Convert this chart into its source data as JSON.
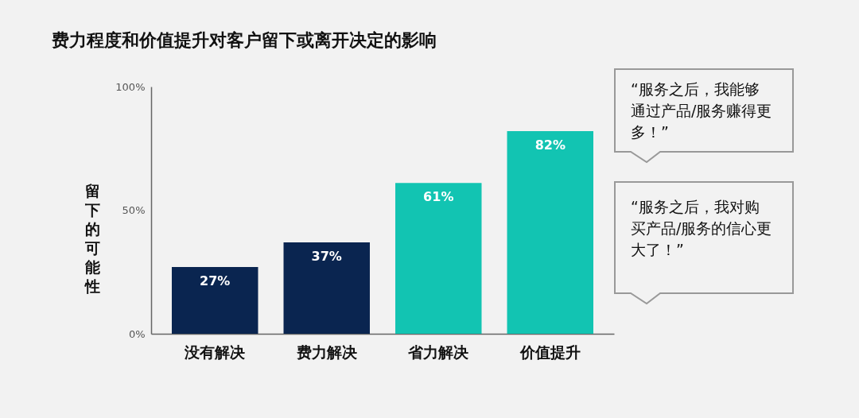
{
  "chart_data": {
    "type": "bar",
    "title": "费力程度和价值提升对客户留下或离开决定的影响",
    "ylabel": "留下的可能性",
    "categories": [
      "没有解决",
      "费力解决",
      "省力解决",
      "价值提升"
    ],
    "values": [
      27,
      37,
      61,
      82
    ],
    "colors": [
      "#0a2550",
      "#0a2550",
      "#12c4b2",
      "#12c4b2"
    ],
    "value_labels": [
      "27%",
      "37%",
      "61%",
      "82%"
    ],
    "ylim": [
      0,
      100
    ],
    "yticks": [
      {
        "value": 0,
        "label": "0%"
      },
      {
        "value": 50,
        "label": "50%"
      },
      {
        "value": 100,
        "label": "100%"
      }
    ],
    "grid": false,
    "annotations": [
      "“服务之后，我能够通过产品/服务赚得更多！”",
      "“服务之后，我对购买产品/服务的信心更大了！”"
    ]
  }
}
